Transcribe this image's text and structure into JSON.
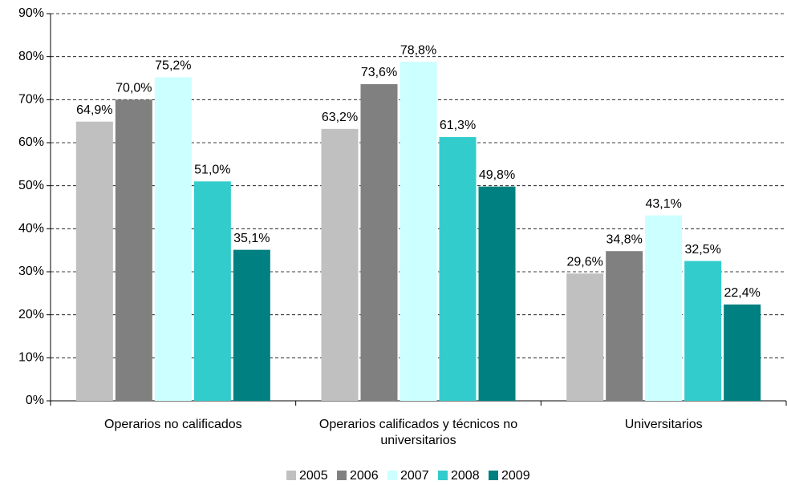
{
  "chart_data": {
    "type": "bar",
    "categories": [
      "Operarios no calificados",
      "Operarios calificados y técnicos no universitarios",
      "Universitarios"
    ],
    "series": [
      {
        "name": "2005",
        "color": "#c0c0c0",
        "values": [
          64.9,
          63.2,
          29.6
        ],
        "value_labels": [
          "64,9%",
          "63,2%",
          "29,6%"
        ]
      },
      {
        "name": "2006",
        "color": "#808080",
        "values": [
          70.0,
          73.6,
          34.8
        ],
        "value_labels": [
          "70,0%",
          "73,6%",
          "34,8%"
        ]
      },
      {
        "name": "2007",
        "color": "#ccffff",
        "values": [
          75.2,
          78.8,
          43.1
        ],
        "value_labels": [
          "75,2%",
          "78,8%",
          "43,1%"
        ]
      },
      {
        "name": "2008",
        "color": "#33cccc",
        "values": [
          51.0,
          61.3,
          32.5
        ],
        "value_labels": [
          "51,0%",
          "61,3%",
          "32,5%"
        ]
      },
      {
        "name": "2009",
        "color": "#008080",
        "values": [
          35.1,
          49.8,
          22.4
        ],
        "value_labels": [
          "35,1%",
          "49,8%",
          "22,4%"
        ]
      }
    ],
    "ylim": [
      0,
      90
    ],
    "yticks": [
      {
        "value": 0,
        "label": "0%"
      },
      {
        "value": 10,
        "label": "10%"
      },
      {
        "value": 20,
        "label": "20%"
      },
      {
        "value": 30,
        "label": "30%"
      },
      {
        "value": 40,
        "label": "40%"
      },
      {
        "value": 50,
        "label": "50%"
      },
      {
        "value": 60,
        "label": "60%"
      },
      {
        "value": 70,
        "label": "70%"
      },
      {
        "value": 80,
        "label": "80%"
      },
      {
        "value": 90,
        "label": "90%"
      }
    ],
    "grid": true,
    "legend": "bottom"
  }
}
